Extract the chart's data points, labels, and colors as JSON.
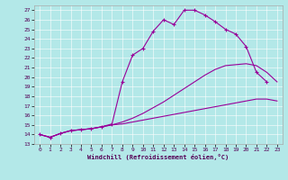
{
  "bg_color": "#b3e8e8",
  "line_color": "#990099",
  "xlim": [
    -0.5,
    23.5
  ],
  "ylim": [
    13,
    27.5
  ],
  "xticks": [
    0,
    1,
    2,
    3,
    4,
    5,
    6,
    7,
    8,
    9,
    10,
    11,
    12,
    13,
    14,
    15,
    16,
    17,
    18,
    19,
    20,
    21,
    22,
    23
  ],
  "yticks": [
    13,
    14,
    15,
    16,
    17,
    18,
    19,
    20,
    21,
    22,
    23,
    24,
    25,
    26,
    27
  ],
  "xlabel": "Windchill (Refroidissement éolien,°C)",
  "curve1_x": [
    0,
    1,
    2,
    3,
    4,
    5,
    6,
    7,
    8,
    9,
    10,
    11,
    12,
    13,
    14,
    15,
    16,
    17,
    18,
    19,
    20,
    21,
    22
  ],
  "curve1_y": [
    14.0,
    13.7,
    14.1,
    14.4,
    14.5,
    14.6,
    14.8,
    15.1,
    19.5,
    22.3,
    23.0,
    24.8,
    26.0,
    25.5,
    27.0,
    27.0,
    26.5,
    25.8,
    25.0,
    24.5,
    23.2,
    20.5,
    19.5
  ],
  "curve2_x": [
    0,
    1,
    2,
    3,
    4,
    5,
    6,
    7,
    8,
    9,
    10,
    11,
    12,
    13,
    14,
    15,
    16,
    17,
    18,
    19,
    20,
    21,
    22,
    23
  ],
  "curve2_y": [
    14.0,
    13.7,
    14.1,
    14.4,
    14.5,
    14.6,
    14.8,
    15.0,
    15.3,
    15.7,
    16.2,
    16.8,
    17.4,
    18.1,
    18.8,
    19.5,
    20.2,
    20.8,
    21.2,
    21.3,
    21.4,
    21.2,
    20.5,
    19.5
  ],
  "curve3_x": [
    0,
    1,
    2,
    3,
    4,
    5,
    6,
    7,
    8,
    9,
    10,
    11,
    12,
    13,
    14,
    15,
    16,
    17,
    18,
    19,
    20,
    21,
    22,
    23
  ],
  "curve3_y": [
    14.0,
    13.7,
    14.1,
    14.4,
    14.5,
    14.6,
    14.8,
    15.0,
    15.1,
    15.3,
    15.5,
    15.7,
    15.9,
    16.1,
    16.3,
    16.5,
    16.7,
    16.9,
    17.1,
    17.3,
    17.5,
    17.7,
    17.7,
    17.5
  ]
}
